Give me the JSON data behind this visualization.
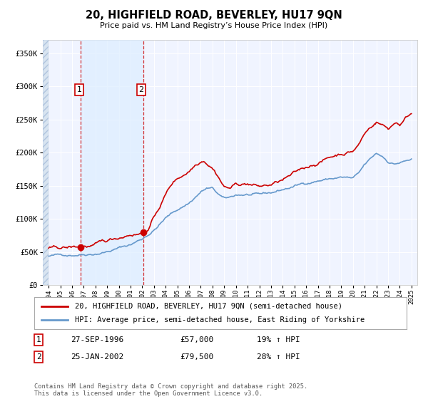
{
  "title": "20, HIGHFIELD ROAD, BEVERLEY, HU17 9QN",
  "subtitle": "Price paid vs. HM Land Registry’s House Price Index (HPI)",
  "sale1_date": "27-SEP-1996",
  "sale1_price": 57000,
  "sale2_date": "25-JAN-2002",
  "sale2_price": 79500,
  "legend_line1": "20, HIGHFIELD ROAD, BEVERLEY, HU17 9QN (semi-detached house)",
  "legend_line2": "HPI: Average price, semi-detached house, East Riding of Yorkshire",
  "footer": "Contains HM Land Registry data © Crown copyright and database right 2025.\nThis data is licensed under the Open Government Licence v3.0.",
  "line_color": "#cc0000",
  "hpi_color": "#6699cc",
  "sale1_x": 1996.75,
  "sale2_x": 2002.07,
  "ylim": [
    0,
    370000
  ],
  "xlim_left": 1993.5,
  "xlim_right": 2025.5,
  "bg_color": "#f0f4ff",
  "hatch_end": 1994.0,
  "shade_between_sales": true,
  "shade_color": "#ddeeff"
}
